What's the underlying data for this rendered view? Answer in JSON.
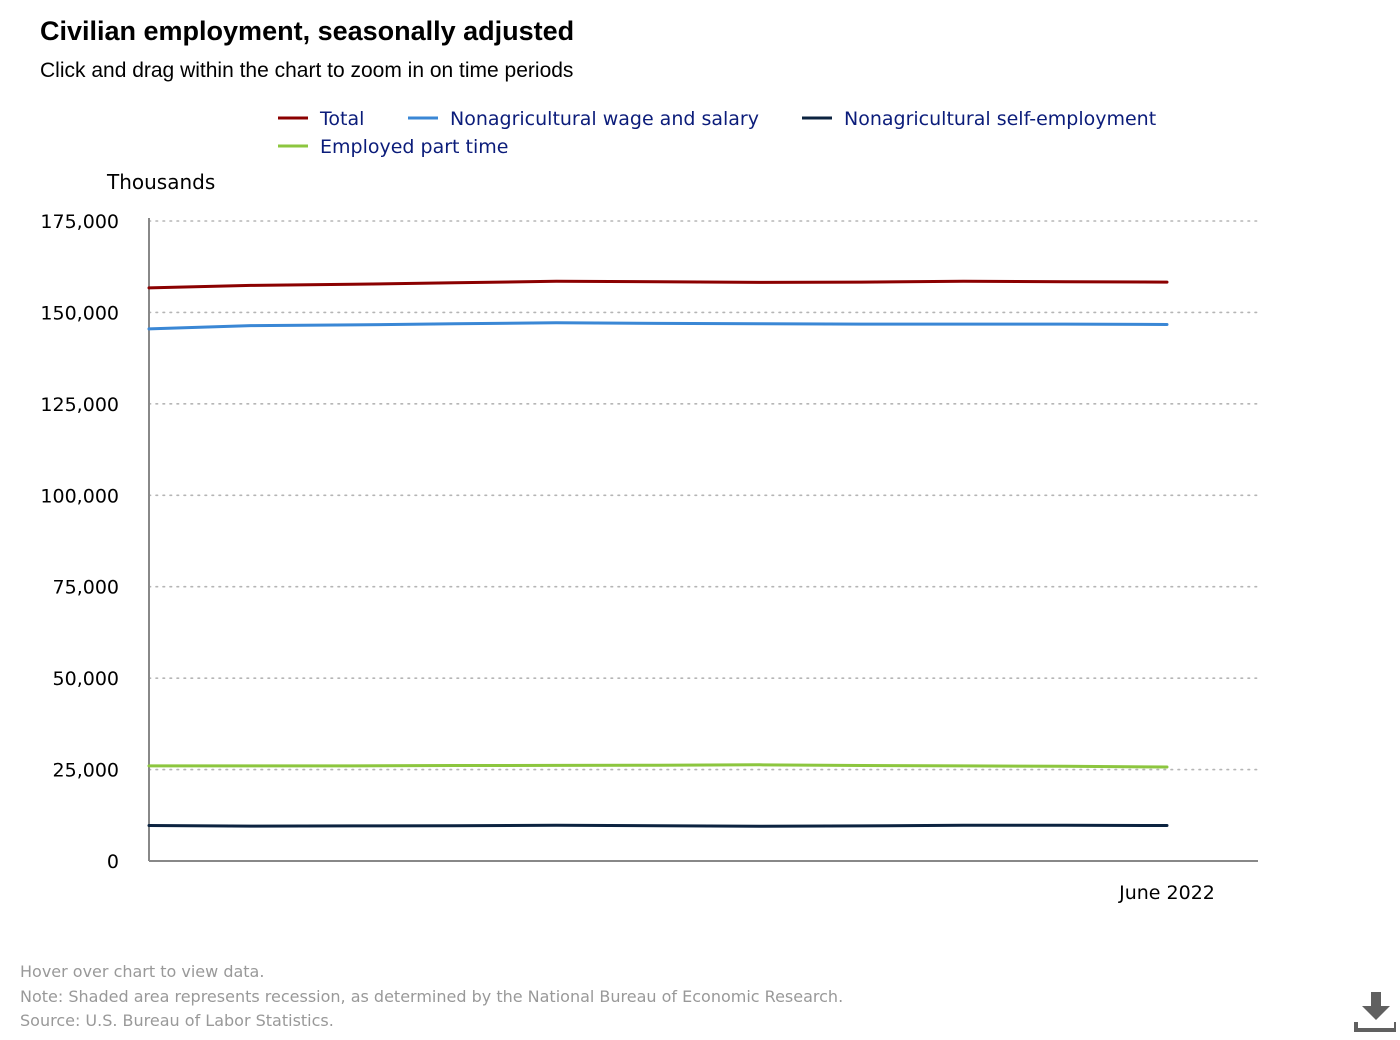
{
  "header": {
    "title": "Civilian employment, seasonally adjusted",
    "subtitle": "Click and drag within the chart to zoom in on time periods"
  },
  "footer": {
    "hover_note": "Hover over chart to view data.",
    "recession_note": "Note: Shaded area represents recession, as determined by the National Bureau of Economic Research.",
    "source": "Source: U.S. Bureau of Labor Statistics."
  },
  "download": {
    "icon": "download-icon"
  },
  "chart_data": {
    "type": "line",
    "title": "Civilian employment, seasonally adjusted",
    "subtitle": "Click and drag within the chart to zoom in on time periods",
    "xlabel": "",
    "ylabel": "Thousands",
    "ylim": [
      0,
      175000
    ],
    "yticks": [
      0,
      25000,
      50000,
      75000,
      100000,
      125000,
      150000,
      175000
    ],
    "ytick_labels": [
      "0",
      "25,000",
      "50,000",
      "75,000",
      "100,000",
      "125,000",
      "150,000",
      "175,000"
    ],
    "xlim": [
      0,
      11
    ],
    "x_tick_index": 10,
    "x_tick_label": "June 2022",
    "grid": "horizontal dotted",
    "legend_position": "top",
    "x": [
      0,
      1,
      2,
      3,
      4,
      5,
      6,
      7,
      8,
      9,
      10
    ],
    "series": [
      {
        "name": "Total",
        "color": "#8B0000",
        "values": [
          156700,
          157400,
          157700,
          158100,
          158500,
          158400,
          158200,
          158300,
          158500,
          158400,
          158300
        ]
      },
      {
        "name": "Nonagricultural wage and salary",
        "color": "#3A87D5",
        "values": [
          145500,
          146400,
          146600,
          146900,
          147200,
          147000,
          146900,
          146800,
          146800,
          146800,
          146700
        ]
      },
      {
        "name": "Nonagricultural self-employment",
        "color": "#0C2340",
        "values": [
          9700,
          9550,
          9600,
          9650,
          9750,
          9650,
          9500,
          9600,
          9800,
          9750,
          9700
        ]
      },
      {
        "name": "Employed part time",
        "color": "#8CC63F",
        "values": [
          26000,
          26000,
          26000,
          26100,
          26150,
          26200,
          26300,
          26100,
          26000,
          25900,
          25700
        ]
      }
    ]
  }
}
